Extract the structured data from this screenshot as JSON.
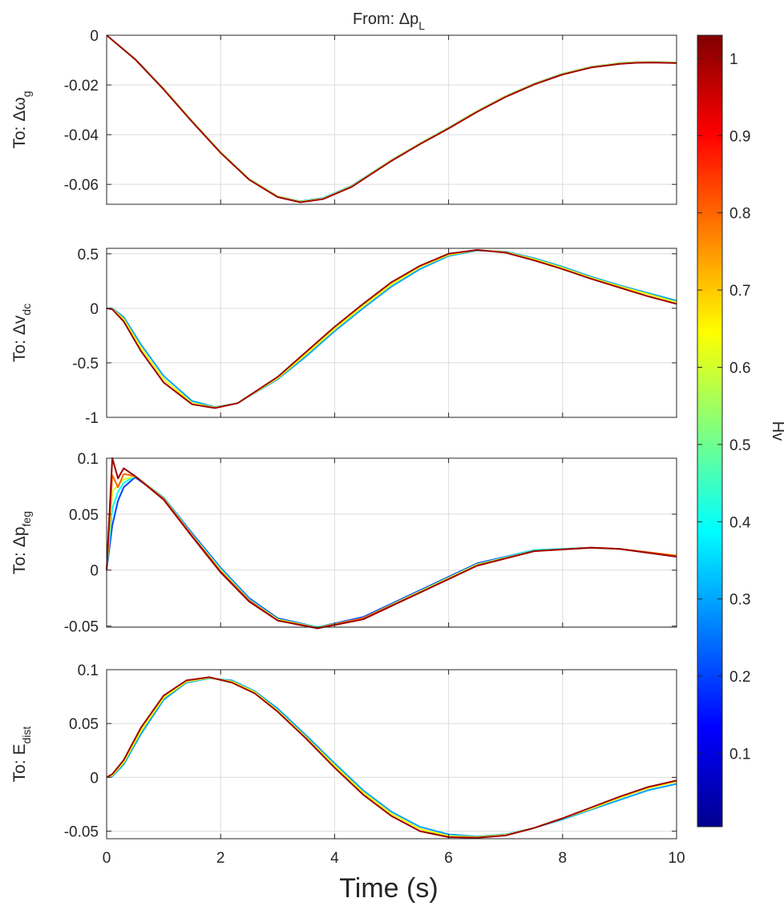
{
  "figure": {
    "title_prefix": "From: Δp",
    "title_sub": "L",
    "xlabel": "Time (s)",
    "colorbar_label": "Hv"
  },
  "colorbar": {
    "colormap": "jet",
    "range": [
      0.005,
      1.03
    ],
    "ticks": [
      0.1,
      0.2,
      0.3,
      0.4,
      0.5,
      0.6,
      0.7,
      0.8,
      0.9,
      1.0
    ],
    "tick_labels": [
      "0.1",
      "0.2",
      "0.3",
      "0.4",
      "0.5",
      "0.6",
      "0.7",
      "0.8",
      "0.9",
      "1"
    ]
  },
  "chart_data": [
    {
      "type": "line",
      "ylabel_prefix": "To: Δω",
      "ylabel_sub": "g",
      "xlim": [
        0,
        10
      ],
      "ylim": [
        -0.068,
        0
      ],
      "xticks": [
        0,
        2,
        4,
        6,
        8,
        10
      ],
      "xtick_labels": [
        "",
        "",
        "",
        "",
        "",
        ""
      ],
      "yticks": [
        0,
        -0.02,
        -0.04,
        -0.06
      ],
      "ytick_labels": [
        "0",
        "-0.02",
        "-0.04",
        "-0.06"
      ],
      "grid": true,
      "x": [
        0,
        0.5,
        1,
        1.5,
        2,
        2.5,
        3,
        3.4,
        3.8,
        4.3,
        5,
        5.5,
        6,
        6.5,
        7,
        7.5,
        8,
        8.5,
        9,
        9.3,
        9.6,
        10
      ],
      "series": [
        {
          "hv": 0.3,
          "values": [
            0,
            -0.0095,
            -0.0215,
            -0.0345,
            -0.047,
            -0.0578,
            -0.0648,
            -0.0668,
            -0.0655,
            -0.0606,
            -0.0502,
            -0.0435,
            -0.0372,
            -0.0305,
            -0.0245,
            -0.0195,
            -0.0155,
            -0.0127,
            -0.0112,
            -0.0108,
            -0.0107,
            -0.011
          ]
        },
        {
          "hv": 0.65,
          "values": [
            0,
            -0.0096,
            -0.0216,
            -0.0346,
            -0.0471,
            -0.0579,
            -0.0649,
            -0.067,
            -0.0657,
            -0.0608,
            -0.0503,
            -0.0436,
            -0.0373,
            -0.0306,
            -0.0246,
            -0.0196,
            -0.0156,
            -0.0128,
            -0.0113,
            -0.0109,
            -0.0108,
            -0.0111
          ]
        },
        {
          "hv": 1.0,
          "values": [
            0,
            -0.0097,
            -0.0218,
            -0.0348,
            -0.0473,
            -0.0581,
            -0.0651,
            -0.0672,
            -0.0659,
            -0.061,
            -0.0505,
            -0.0438,
            -0.0375,
            -0.0308,
            -0.0248,
            -0.0198,
            -0.0158,
            -0.013,
            -0.0115,
            -0.0111,
            -0.011,
            -0.0112
          ]
        }
      ]
    },
    {
      "type": "line",
      "ylabel_prefix": "To: Δv",
      "ylabel_sub": "dc",
      "xlim": [
        0,
        10
      ],
      "ylim": [
        -1,
        0.55
      ],
      "xticks": [
        0,
        2,
        4,
        6,
        8,
        10
      ],
      "xtick_labels": [
        "",
        "",
        "",
        "",
        "",
        ""
      ],
      "yticks": [
        0.5,
        0,
        -0.5,
        -1
      ],
      "ytick_labels": [
        "0.5",
        "0",
        "-0.5",
        "-1"
      ],
      "grid": true,
      "x": [
        0,
        0.1,
        0.3,
        0.6,
        1,
        1.5,
        1.9,
        2.3,
        3,
        3.5,
        4,
        4.5,
        5,
        5.5,
        6,
        6.5,
        7,
        7.5,
        8,
        8.5,
        9,
        9.5,
        10
      ],
      "series": [
        {
          "hv": 0.3,
          "values": [
            0,
            0,
            -0.08,
            -0.33,
            -0.62,
            -0.85,
            -0.905,
            -0.87,
            -0.65,
            -0.44,
            -0.21,
            0.0,
            0.2,
            0.36,
            0.48,
            0.53,
            0.52,
            0.46,
            0.38,
            0.29,
            0.21,
            0.14,
            0.07
          ]
        },
        {
          "hv": 0.65,
          "values": [
            0,
            -0.005,
            -0.1,
            -0.36,
            -0.65,
            -0.87,
            -0.91,
            -0.87,
            -0.64,
            -0.42,
            -0.19,
            0.02,
            0.22,
            0.38,
            0.49,
            0.535,
            0.515,
            0.45,
            0.37,
            0.28,
            0.2,
            0.13,
            0.055
          ]
        },
        {
          "hv": 1.0,
          "values": [
            0,
            -0.01,
            -0.12,
            -0.39,
            -0.68,
            -0.88,
            -0.915,
            -0.87,
            -0.63,
            -0.4,
            -0.17,
            0.04,
            0.24,
            0.39,
            0.5,
            0.535,
            0.51,
            0.44,
            0.36,
            0.27,
            0.19,
            0.11,
            0.04
          ]
        }
      ]
    },
    {
      "type": "line",
      "ylabel_prefix": "To: Δp",
      "ylabel_sub": "feg",
      "xlim": [
        0,
        10
      ],
      "ylim": [
        -0.051,
        0.1
      ],
      "xticks": [
        0,
        2,
        4,
        6,
        8,
        10
      ],
      "xtick_labels": [
        "",
        "",
        "",
        "",
        "",
        ""
      ],
      "yticks": [
        0.1,
        0.05,
        0,
        -0.05
      ],
      "ytick_labels": [
        "0.1",
        "0.05",
        "0",
        "-0.05"
      ],
      "grid": true,
      "x": [
        0,
        0.1,
        0.2,
        0.3,
        0.5,
        1,
        1.5,
        2,
        2.5,
        3,
        3.7,
        4.5,
        5.5,
        6.5,
        7.5,
        8.5,
        9,
        10
      ],
      "series": [
        {
          "hv": 0.2,
          "values": [
            0,
            0.04,
            0.062,
            0.074,
            0.083,
            0.065,
            0.033,
            0.002,
            -0.025,
            -0.043,
            -0.051,
            -0.042,
            -0.018,
            0.006,
            0.018,
            0.02,
            0.019,
            0.013
          ]
        },
        {
          "hv": 0.4,
          "values": [
            0,
            0.055,
            0.07,
            0.078,
            0.084,
            0.065,
            0.032,
            0.001,
            -0.026,
            -0.044,
            -0.051,
            -0.043,
            -0.019,
            0.005,
            0.018,
            0.02,
            0.019,
            0.013
          ]
        },
        {
          "hv": 0.6,
          "values": [
            0,
            0.07,
            0.076,
            0.081,
            0.084,
            0.064,
            0.031,
            0.0,
            -0.027,
            -0.044,
            -0.0515,
            -0.043,
            -0.019,
            0.005,
            0.017,
            0.02,
            0.019,
            0.013
          ]
        },
        {
          "hv": 0.8,
          "values": [
            0,
            0.085,
            0.074,
            0.086,
            0.084,
            0.064,
            0.031,
            -0.001,
            -0.027,
            -0.045,
            -0.0515,
            -0.043,
            -0.02,
            0.004,
            0.017,
            0.02,
            0.019,
            0.013
          ]
        },
        {
          "hv": 1.0,
          "values": [
            0,
            0.1,
            0.082,
            0.091,
            0.084,
            0.063,
            0.03,
            -0.002,
            -0.028,
            -0.045,
            -0.052,
            -0.044,
            -0.02,
            0.004,
            0.017,
            0.02,
            0.019,
            0.012
          ]
        }
      ]
    },
    {
      "type": "line",
      "ylabel_prefix": "To: E",
      "ylabel_sub": "dist",
      "xlim": [
        0,
        10
      ],
      "ylim": [
        -0.057,
        0.1
      ],
      "xticks": [
        0,
        2,
        4,
        6,
        8,
        10
      ],
      "xtick_labels": [
        "0",
        "2",
        "4",
        "6",
        "8",
        "10"
      ],
      "yticks": [
        0.1,
        0.05,
        0,
        -0.05
      ],
      "ytick_labels": [
        "0.1",
        "0.05",
        "0",
        "-0.05"
      ],
      "grid": true,
      "x": [
        0,
        0.1,
        0.3,
        0.6,
        1,
        1.4,
        1.8,
        2.2,
        2.6,
        3,
        3.5,
        4,
        4.5,
        5,
        5.5,
        6,
        6.5,
        7,
        7.5,
        8,
        8.5,
        9,
        9.5,
        10
      ],
      "series": [
        {
          "hv": 0.3,
          "values": [
            0,
            0.001,
            0.012,
            0.04,
            0.072,
            0.088,
            0.092,
            0.09,
            0.08,
            0.064,
            0.039,
            0.013,
            -0.012,
            -0.032,
            -0.046,
            -0.053,
            -0.055,
            -0.053,
            -0.047,
            -0.039,
            -0.03,
            -0.021,
            -0.012,
            -0.006
          ]
        },
        {
          "hv": 0.65,
          "values": [
            0,
            0.002,
            0.014,
            0.043,
            0.074,
            0.089,
            0.0925,
            0.089,
            0.079,
            0.062,
            0.037,
            0.011,
            -0.014,
            -0.034,
            -0.048,
            -0.0545,
            -0.0555,
            -0.0535,
            -0.047,
            -0.038,
            -0.029,
            -0.019,
            -0.01,
            -0.004
          ]
        },
        {
          "hv": 1.0,
          "values": [
            0,
            0.003,
            0.016,
            0.046,
            0.076,
            0.09,
            0.093,
            0.088,
            0.078,
            0.061,
            0.036,
            0.009,
            -0.016,
            -0.036,
            -0.05,
            -0.0555,
            -0.056,
            -0.054,
            -0.047,
            -0.038,
            -0.028,
            -0.018,
            -0.009,
            -0.003
          ]
        }
      ]
    }
  ]
}
